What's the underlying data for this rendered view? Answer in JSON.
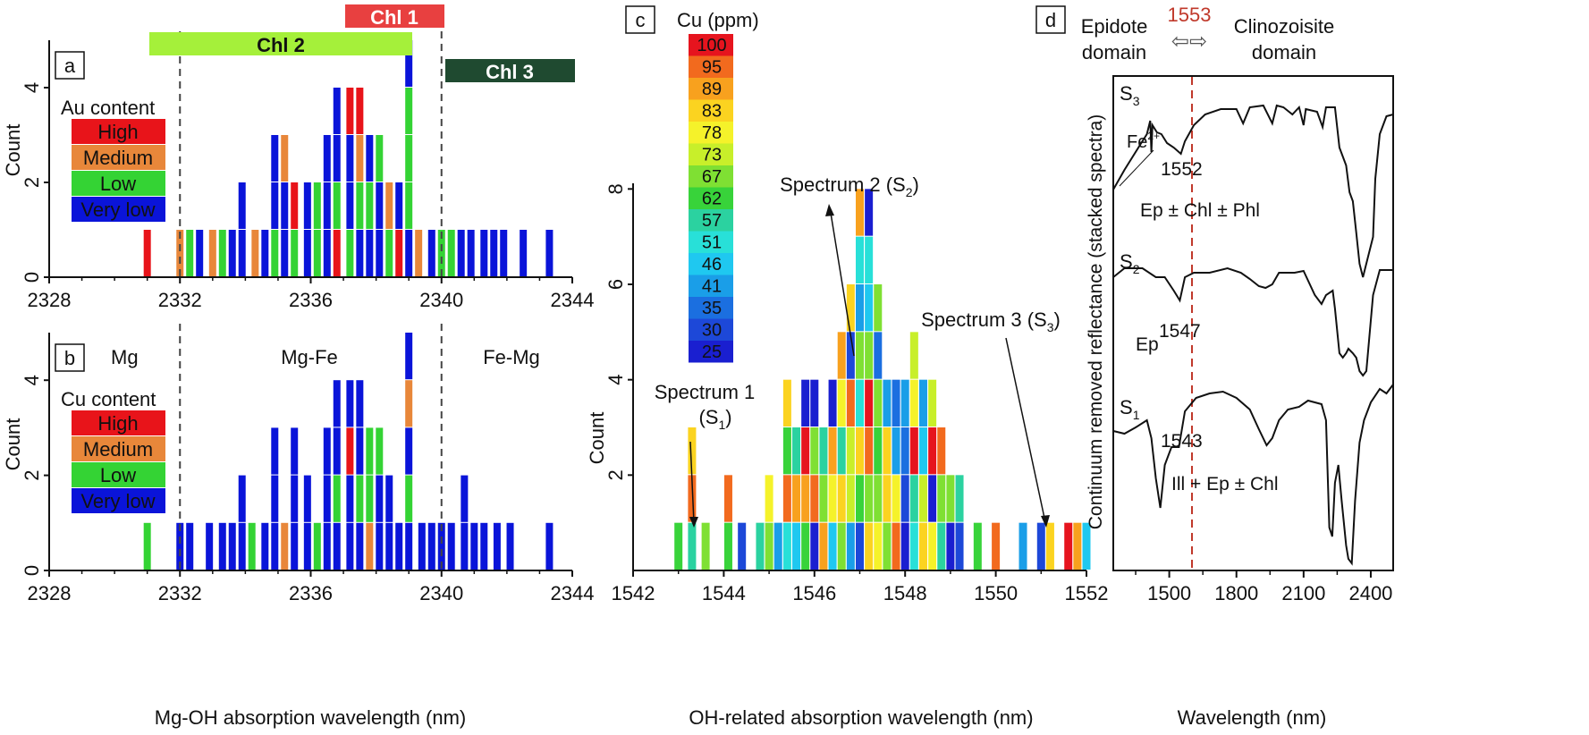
{
  "colors": {
    "high": "#e8141a",
    "medium": "#e8873a",
    "low": "#34d334",
    "very_low": "#0a14d9",
    "chl1": "#e84040",
    "chl2": "#a5f03a",
    "chl3": "#1f4a30",
    "dashed_red": "#c0392b"
  },
  "ranges": {
    "chl1": "Chl 1",
    "chl2": "Chl 2",
    "chl3": "Chl 3"
  },
  "panel_labels": {
    "a": "a",
    "b": "b",
    "c": "c",
    "d": "d"
  },
  "chart_data": [
    {
      "panel": "a",
      "type": "bar",
      "title": "",
      "ylabel": "Count",
      "xlabel": "",
      "xlim": [
        2328,
        2344
      ],
      "ylim": [
        0,
        5
      ],
      "xticks": [
        "2328",
        "2332",
        "2336",
        "2340",
        "2344"
      ],
      "yticks": [
        "0",
        "2",
        "4"
      ],
      "legend_title": "Au content",
      "legend": [
        "High",
        "Medium",
        "Low",
        "Very low"
      ],
      "vlines": [
        2332,
        2340
      ],
      "stacks": [
        {
          "x": 2331.0,
          "classes": [
            "high"
          ]
        },
        {
          "x": 2332.0,
          "classes": [
            "medium"
          ]
        },
        {
          "x": 2332.3,
          "classes": [
            "low"
          ]
        },
        {
          "x": 2332.6,
          "classes": [
            "very_low"
          ]
        },
        {
          "x": 2333.0,
          "classes": [
            "medium"
          ]
        },
        {
          "x": 2333.3,
          "classes": [
            "low"
          ]
        },
        {
          "x": 2333.6,
          "classes": [
            "very_low"
          ]
        },
        {
          "x": 2333.9,
          "classes": [
            "very_low",
            "very_low"
          ]
        },
        {
          "x": 2334.3,
          "classes": [
            "medium"
          ]
        },
        {
          "x": 2334.6,
          "classes": [
            "very_low"
          ]
        },
        {
          "x": 2334.9,
          "classes": [
            "low",
            "very_low",
            "very_low"
          ]
        },
        {
          "x": 2335.2,
          "classes": [
            "very_low",
            "very_low",
            "medium"
          ]
        },
        {
          "x": 2335.5,
          "classes": [
            "low",
            "high"
          ]
        },
        {
          "x": 2335.9,
          "classes": [
            "very_low",
            "very_low"
          ]
        },
        {
          "x": 2336.2,
          "classes": [
            "low",
            "low"
          ]
        },
        {
          "x": 2336.5,
          "classes": [
            "very_low",
            "very_low",
            "very_low"
          ]
        },
        {
          "x": 2336.8,
          "classes": [
            "high",
            "low",
            "very_low",
            "very_low"
          ]
        },
        {
          "x": 2337.2,
          "classes": [
            "low",
            "very_low",
            "very_low",
            "high"
          ]
        },
        {
          "x": 2337.5,
          "classes": [
            "very_low",
            "low",
            "medium",
            "high"
          ]
        },
        {
          "x": 2337.8,
          "classes": [
            "very_low",
            "low",
            "very_low"
          ]
        },
        {
          "x": 2338.1,
          "classes": [
            "very_low",
            "very_low",
            "low"
          ]
        },
        {
          "x": 2338.4,
          "classes": [
            "low",
            "medium"
          ]
        },
        {
          "x": 2338.7,
          "classes": [
            "high",
            "very_low"
          ]
        },
        {
          "x": 2339.0,
          "classes": [
            "very_low",
            "low",
            "low",
            "low",
            "very_low"
          ]
        },
        {
          "x": 2339.3,
          "classes": [
            "medium"
          ]
        },
        {
          "x": 2339.7,
          "classes": [
            "very_low"
          ]
        },
        {
          "x": 2340.0,
          "classes": [
            "low"
          ]
        },
        {
          "x": 2340.3,
          "classes": [
            "low"
          ]
        },
        {
          "x": 2340.6,
          "classes": [
            "very_low"
          ]
        },
        {
          "x": 2340.9,
          "classes": [
            "very_low"
          ]
        },
        {
          "x": 2341.3,
          "classes": [
            "very_low"
          ]
        },
        {
          "x": 2341.6,
          "classes": [
            "very_low"
          ]
        },
        {
          "x": 2341.9,
          "classes": [
            "very_low"
          ]
        },
        {
          "x": 2342.5,
          "classes": [
            "very_low"
          ]
        },
        {
          "x": 2343.3,
          "classes": [
            "very_low"
          ]
        }
      ]
    },
    {
      "panel": "b",
      "type": "bar",
      "ylabel": "Count",
      "xlabel": "Mg-OH absorption wavelength (nm)",
      "xlim": [
        2328,
        2344
      ],
      "ylim": [
        0,
        5
      ],
      "xticks": [
        "2328",
        "2332",
        "2336",
        "2340",
        "2344"
      ],
      "yticks": [
        "0",
        "2",
        "4"
      ],
      "legend_title": "Cu content",
      "legend": [
        "High",
        "Medium",
        "Low",
        "Very low"
      ],
      "vlines": [
        2332,
        2340
      ],
      "regions": [
        "Mg",
        "Mg-Fe",
        "Fe-Mg"
      ],
      "stacks": [
        {
          "x": 2331.0,
          "classes": [
            "low"
          ]
        },
        {
          "x": 2332.0,
          "classes": [
            "very_low"
          ]
        },
        {
          "x": 2332.3,
          "classes": [
            "very_low"
          ]
        },
        {
          "x": 2332.9,
          "classes": [
            "very_low"
          ]
        },
        {
          "x": 2333.3,
          "classes": [
            "very_low"
          ]
        },
        {
          "x": 2333.6,
          "classes": [
            "very_low"
          ]
        },
        {
          "x": 2333.9,
          "classes": [
            "very_low",
            "very_low"
          ]
        },
        {
          "x": 2334.2,
          "classes": [
            "low"
          ]
        },
        {
          "x": 2334.6,
          "classes": [
            "very_low"
          ]
        },
        {
          "x": 2334.9,
          "classes": [
            "very_low",
            "very_low",
            "very_low"
          ]
        },
        {
          "x": 2335.2,
          "classes": [
            "medium"
          ]
        },
        {
          "x": 2335.5,
          "classes": [
            "very_low",
            "very_low",
            "very_low"
          ]
        },
        {
          "x": 2335.9,
          "classes": [
            "very_low",
            "very_low"
          ]
        },
        {
          "x": 2336.2,
          "classes": [
            "low"
          ]
        },
        {
          "x": 2336.5,
          "classes": [
            "very_low",
            "very_low",
            "very_low"
          ]
        },
        {
          "x": 2336.8,
          "classes": [
            "very_low",
            "low",
            "very_low",
            "very_low"
          ]
        },
        {
          "x": 2337.2,
          "classes": [
            "very_low",
            "very_low",
            "high",
            "very_low"
          ]
        },
        {
          "x": 2337.5,
          "classes": [
            "very_low",
            "low",
            "very_low",
            "very_low"
          ]
        },
        {
          "x": 2337.8,
          "classes": [
            "medium",
            "low",
            "low"
          ]
        },
        {
          "x": 2338.1,
          "classes": [
            "very_low",
            "very_low",
            "low"
          ]
        },
        {
          "x": 2338.4,
          "classes": [
            "very_low",
            "very_low"
          ]
        },
        {
          "x": 2338.7,
          "classes": [
            "very_low"
          ]
        },
        {
          "x": 2339.0,
          "classes": [
            "very_low",
            "low",
            "very_low",
            "medium",
            "very_low"
          ]
        },
        {
          "x": 2339.4,
          "classes": [
            "very_low"
          ]
        },
        {
          "x": 2339.7,
          "classes": [
            "very_low"
          ]
        },
        {
          "x": 2340.0,
          "classes": [
            "very_low"
          ]
        },
        {
          "x": 2340.3,
          "classes": [
            "very_low"
          ]
        },
        {
          "x": 2340.7,
          "classes": [
            "very_low",
            "very_low"
          ]
        },
        {
          "x": 2341.0,
          "classes": [
            "very_low"
          ]
        },
        {
          "x": 2341.3,
          "classes": [
            "very_low"
          ]
        },
        {
          "x": 2341.7,
          "classes": [
            "very_low"
          ]
        },
        {
          "x": 2342.1,
          "classes": [
            "very_low"
          ]
        },
        {
          "x": 2343.3,
          "classes": [
            "very_low"
          ]
        }
      ]
    },
    {
      "panel": "c",
      "type": "bar",
      "ylabel": "Count",
      "xlabel": "OH-related absorption wavelength (nm)",
      "xlim": [
        1542,
        1552
      ],
      "ylim": [
        0,
        8.4
      ],
      "xticks": [
        "1542",
        "1544",
        "1546",
        "1548",
        "1550",
        "1552"
      ],
      "yticks": [
        "2",
        "4",
        "6",
        "8"
      ],
      "colorbar_title": "Cu (ppm)",
      "colorbar_labels": [
        "100",
        "95",
        "89",
        "83",
        "78",
        "73",
        "67",
        "62",
        "57",
        "51",
        "46",
        "41",
        "35",
        "30",
        "25"
      ],
      "colorbar_colors": [
        "#e6141e",
        "#f26a1e",
        "#f8a11e",
        "#fbd320",
        "#f5f22a",
        "#c8ef2a",
        "#7fe033",
        "#38d33a",
        "#2bd2a0",
        "#28e0d8",
        "#1fc8f0",
        "#1a9ee8",
        "#1b6fe0",
        "#1d48d8",
        "#1a1fd0"
      ],
      "annotations": [
        "Spectrum 1",
        "(S1)",
        "Spectrum 2 (S2)",
        "Spectrum 3 (S3)"
      ],
      "bins_x": [
        1543.0,
        1543.3,
        1543.6,
        1544.1,
        1544.4,
        1544.8,
        1545.0,
        1545.2,
        1545.4,
        1545.6,
        1545.8,
        1546.0,
        1546.2,
        1546.4,
        1546.6,
        1546.8,
        1547.0,
        1547.2,
        1547.4,
        1547.6,
        1547.8,
        1548.0,
        1548.2,
        1548.4,
        1548.6,
        1548.8,
        1549.0,
        1549.2,
        1549.6,
        1550.0,
        1550.6,
        1551.0,
        1551.2,
        1551.6,
        1551.8,
        1552.0
      ],
      "bins_counts": [
        1,
        3,
        1,
        2,
        1,
        1,
        2,
        1,
        4,
        3,
        4,
        4,
        3,
        4,
        5,
        6,
        8,
        8,
        6,
        4,
        4,
        4,
        5,
        4,
        4,
        3,
        2,
        2,
        1,
        1,
        1,
        1,
        1,
        1,
        1,
        1
      ]
    },
    {
      "panel": "d",
      "type": "line",
      "ylabel": "Continuum removed reflectance (stacked spectra)",
      "xlabel": "Wavelength (nm)",
      "xlim": [
        1250,
        2500
      ],
      "xticks": [
        "1500",
        "1800",
        "2100",
        "2400"
      ],
      "marker_line": 1553,
      "marker_label": "1553",
      "header_left": [
        "Epidote",
        "domain"
      ],
      "header_right": [
        "Clinozoisite",
        "domain"
      ],
      "header_arrows": "⇦⇨",
      "spectra": [
        {
          "name": "S3",
          "label_main": "S",
          "label_sub": "3",
          "minimum": "1552",
          "assemblage": "Ep ± Chl ± Phl",
          "fe_label": "Fe",
          "fe_sup": "2+"
        },
        {
          "name": "S2",
          "label_main": "S",
          "label_sub": "2",
          "minimum": "1547",
          "assemblage": "Ep"
        },
        {
          "name": "S1",
          "label_main": "S",
          "label_sub": "1",
          "minimum": "1543",
          "assemblage": "Ill + Ep ± Chl"
        }
      ]
    }
  ]
}
